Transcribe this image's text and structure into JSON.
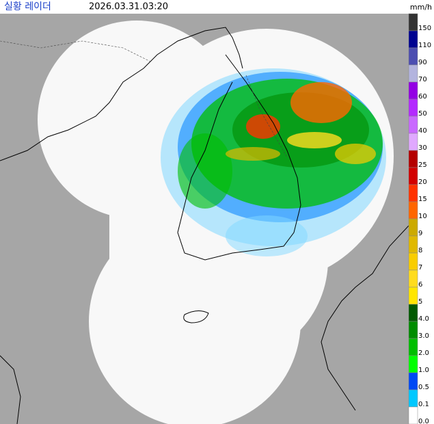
{
  "header": {
    "title": "실황 레이더",
    "timestamp": "2026.03.31.03:20",
    "unit": "mm/h"
  },
  "legend": {
    "items": [
      {
        "label": "150",
        "color": "#333333"
      },
      {
        "label": "110",
        "color": "#000390"
      },
      {
        "label": "90",
        "color": "#4c4eb1"
      },
      {
        "label": "70",
        "color": "#b3b4de"
      },
      {
        "label": "60",
        "color": "#9300e4"
      },
      {
        "label": "50",
        "color": "#b329ff"
      },
      {
        "label": "40",
        "color": "#c969ff"
      },
      {
        "label": "30",
        "color": "#e0a9ff"
      },
      {
        "label": "25",
        "color": "#b40000"
      },
      {
        "label": "20",
        "color": "#d20000"
      },
      {
        "label": "15",
        "color": "#ff3300"
      },
      {
        "label": "10",
        "color": "#ff6600"
      },
      {
        "label": "9",
        "color": "#ccaa00"
      },
      {
        "label": "8",
        "color": "#e0b900"
      },
      {
        "label": "7",
        "color": "#f9cd00"
      },
      {
        "label": "6",
        "color": "#ffdc1f"
      },
      {
        "label": "5",
        "color": "#ffe600"
      },
      {
        "label": "4.0",
        "color": "#005a00"
      },
      {
        "label": "3.0",
        "color": "#008c00"
      },
      {
        "label": "2.0",
        "color": "#00be00"
      },
      {
        "label": "1.0",
        "color": "#00ff00"
      },
      {
        "label": "0.5",
        "color": "#0049f5"
      },
      {
        "label": "0.1",
        "color": "#00c8ff"
      },
      {
        "label": "0.0",
        "color": "#ffffff"
      }
    ]
  }
}
